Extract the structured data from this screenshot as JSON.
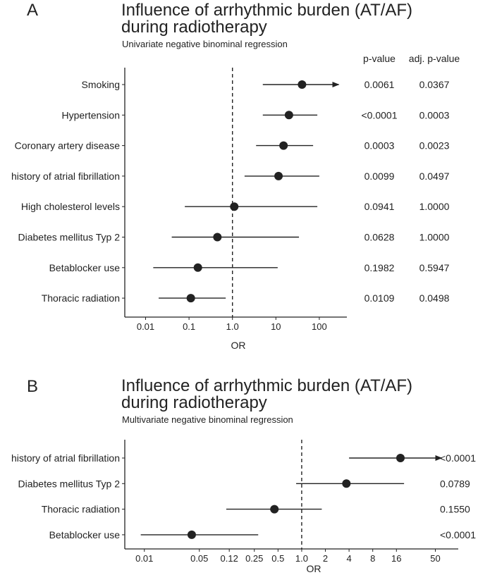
{
  "chart_data": [
    {
      "type": "forest",
      "panel": "A",
      "title_line1": "Influence of arrhythmic burden (AT/AF)",
      "title_line2": "during radiotherapy",
      "subtitle": "Univariate negative binominal regression",
      "xlabel": "OR",
      "x_scale": "log10",
      "xlim": [
        0.004,
        400
      ],
      "reference_line": 1.0,
      "x_ticks": [
        {
          "value": 0.01,
          "label": "0.01"
        },
        {
          "value": 0.1,
          "label": "0.1"
        },
        {
          "value": 1,
          "label": "1.0"
        },
        {
          "value": 10,
          "label": "10"
        },
        {
          "value": 100,
          "label": "100"
        }
      ],
      "column_headers": [
        "p-value",
        "adj. p-value"
      ],
      "rows": [
        {
          "label": "Smoking",
          "or": 40,
          "lo": 5,
          "hi": 280,
          "arrow": true,
          "p": "0.0061",
          "adj_p": "0.0367"
        },
        {
          "label": "Hypertension",
          "or": 20,
          "lo": 5,
          "hi": 90,
          "arrow": false,
          "p": "<0.0001",
          "adj_p": "0.0003"
        },
        {
          "label": "Coronary artery disease",
          "or": 15,
          "lo": 3.5,
          "hi": 72,
          "arrow": false,
          "p": "0.0003",
          "adj_p": "0.0023"
        },
        {
          "label": "history of atrial fibrillation",
          "or": 11.5,
          "lo": 1.9,
          "hi": 100,
          "arrow": false,
          "p": "0.0099",
          "adj_p": "0.0497"
        },
        {
          "label": "High cholesterol levels",
          "or": 1.1,
          "lo": 0.08,
          "hi": 90,
          "arrow": false,
          "p": "0.0941",
          "adj_p": "1.0000"
        },
        {
          "label": "Diabetes mellitus Typ 2",
          "or": 0.45,
          "lo": 0.04,
          "hi": 34,
          "arrow": false,
          "p": "0.0628",
          "adj_p": "1.0000"
        },
        {
          "label": "Betablocker use",
          "or": 0.16,
          "lo": 0.015,
          "hi": 11,
          "arrow": false,
          "p": "0.1982",
          "adj_p": "0.5947"
        },
        {
          "label": "Thoracic radiation",
          "or": 0.11,
          "lo": 0.02,
          "hi": 0.7,
          "arrow": false,
          "p": "0.0109",
          "adj_p": "0.0498"
        }
      ]
    },
    {
      "type": "forest",
      "panel": "B",
      "title_line1": "Influence of arrhythmic burden (AT/AF)",
      "title_line2": "during radiotherapy",
      "subtitle": "Multivariate negative binominal regression",
      "xlabel": "OR",
      "x_scale": "log10",
      "xlim": [
        0.006,
        90
      ],
      "reference_line": 1.0,
      "x_ticks": [
        {
          "value": 0.01,
          "label": "0.01"
        },
        {
          "value": 0.05,
          "label": "0.05"
        },
        {
          "value": 0.12,
          "label": "0.12"
        },
        {
          "value": 0.25,
          "label": "0.25"
        },
        {
          "value": 0.5,
          "label": "0.5"
        },
        {
          "value": 1,
          "label": "1.0"
        },
        {
          "value": 2,
          "label": "2"
        },
        {
          "value": 4,
          "label": "4"
        },
        {
          "value": 8,
          "label": "8"
        },
        {
          "value": 16,
          "label": "16"
        },
        {
          "value": 50,
          "label": "50"
        }
      ],
      "column_headers": [],
      "rows": [
        {
          "label": "history of atrial fibrillation",
          "or": 18,
          "lo": 4,
          "hi": 60,
          "arrow": true,
          "p": "<0.0001"
        },
        {
          "label": "Diabetes mellitus Typ 2",
          "or": 3.7,
          "lo": 0.85,
          "hi": 20,
          "arrow": false,
          "p": "0.0789"
        },
        {
          "label": "Thoracic radiation",
          "or": 0.45,
          "lo": 0.11,
          "hi": 1.8,
          "arrow": false,
          "p": "0.1550"
        },
        {
          "label": "Betablocker use",
          "or": 0.04,
          "lo": 0.009,
          "hi": 0.28,
          "arrow": false,
          "p": "<0.0001"
        }
      ]
    }
  ]
}
